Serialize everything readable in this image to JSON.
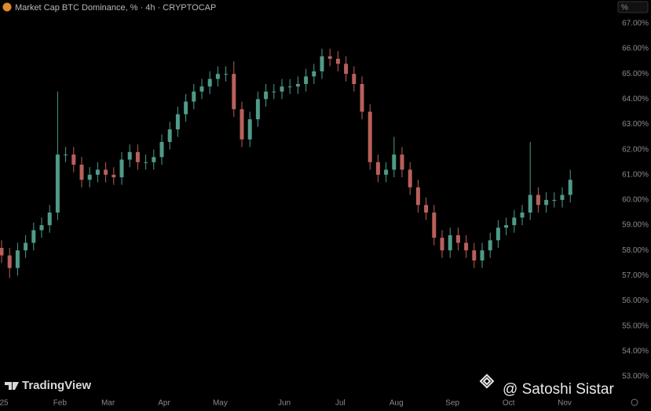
{
  "chart_data": {
    "type": "candlestick",
    "title": "Market Cap BTC Dominance, % · 4h · CRYPTOCAP",
    "axis_unit": "%",
    "watermark": "TradingView",
    "overlay_text": "@ Satoshi Sistar",
    "up_color": "#4f9a8a",
    "down_color": "#b8605a",
    "categories": [
      "25",
      null,
      null,
      null,
      null,
      null,
      null,
      "Feb",
      null,
      null,
      null,
      null,
      null,
      "Mar",
      null,
      null,
      null,
      null,
      null,
      null,
      "Apr",
      null,
      null,
      null,
      null,
      null,
      null,
      "May",
      null,
      null,
      null,
      null,
      null,
      null,
      null,
      "Jun",
      null,
      null,
      null,
      null,
      null,
      null,
      "Jul",
      null,
      null,
      null,
      null,
      null,
      null,
      "Aug",
      null,
      null,
      null,
      null,
      null,
      null,
      "Sep",
      null,
      null,
      null,
      null,
      null,
      null,
      "Oct",
      null,
      null,
      null,
      null,
      null,
      null,
      "Nov",
      null
    ],
    "open": [
      58.1,
      57.8,
      57.3,
      58.0,
      58.3,
      58.8,
      59.0,
      59.5,
      61.8,
      61.8,
      61.4,
      60.8,
      61.0,
      61.2,
      61.0,
      60.9,
      61.6,
      61.9,
      61.5,
      61.5,
      61.7,
      62.3,
      62.8,
      63.4,
      63.9,
      64.3,
      64.5,
      64.8,
      65.0,
      65.0,
      63.6,
      62.4,
      63.2,
      64.0,
      64.3,
      64.3,
      64.5,
      64.5,
      64.6,
      64.9,
      65.1,
      65.7,
      65.6,
      65.4,
      65.0,
      64.6,
      63.5,
      61.5,
      61.0,
      61.2,
      61.8,
      61.2,
      60.5,
      59.8,
      59.5,
      58.5,
      58.0,
      58.6,
      58.3,
      58.0,
      57.6,
      58.0,
      58.4,
      58.9,
      59.0,
      59.3,
      59.5,
      60.2,
      59.8,
      60.0,
      60.0,
      60.2
    ],
    "high": [
      58.4,
      58.1,
      58.3,
      58.6,
      59.1,
      59.3,
      59.8,
      64.3,
      62.1,
      62.1,
      61.7,
      61.3,
      61.5,
      61.5,
      61.3,
      61.9,
      62.2,
      62.2,
      61.8,
      62.0,
      62.6,
      63.1,
      63.7,
      64.2,
      64.6,
      64.8,
      65.1,
      65.3,
      65.3,
      65.5,
      63.9,
      63.5,
      64.3,
      64.6,
      64.6,
      64.8,
      64.8,
      64.9,
      65.2,
      65.4,
      66.0,
      66.0,
      65.9,
      65.7,
      65.3,
      64.9,
      63.8,
      61.8,
      61.5,
      62.5,
      62.1,
      61.5,
      60.8,
      60.1,
      59.8,
      58.8,
      58.9,
      58.9,
      58.6,
      58.3,
      58.3,
      58.7,
      59.2,
      59.3,
      59.6,
      59.8,
      62.3,
      60.5,
      60.3,
      60.3,
      60.5,
      61.2
    ],
    "low": [
      57.5,
      56.9,
      57.0,
      57.7,
      58.0,
      58.5,
      58.7,
      59.2,
      61.5,
      61.1,
      60.5,
      60.5,
      60.7,
      60.7,
      60.6,
      60.6,
      61.3,
      61.2,
      61.2,
      61.2,
      61.4,
      62.0,
      62.5,
      63.1,
      63.6,
      64.0,
      64.2,
      64.5,
      64.7,
      63.3,
      62.1,
      62.1,
      62.9,
      63.7,
      64.0,
      64.0,
      64.2,
      64.2,
      64.3,
      64.6,
      64.8,
      65.3,
      65.1,
      64.7,
      64.3,
      63.2,
      61.2,
      60.7,
      60.7,
      60.9,
      60.9,
      60.2,
      59.5,
      59.2,
      58.2,
      57.7,
      57.7,
      58.0,
      57.7,
      57.3,
      57.3,
      57.7,
      58.1,
      58.6,
      58.7,
      59.0,
      59.2,
      59.5,
      59.5,
      59.7,
      59.7,
      59.9
    ],
    "close": [
      57.8,
      57.3,
      58.0,
      58.3,
      58.8,
      59.0,
      59.5,
      61.8,
      61.8,
      61.4,
      60.8,
      61.0,
      61.2,
      61.0,
      60.9,
      61.6,
      61.9,
      61.5,
      61.5,
      61.7,
      62.3,
      62.8,
      63.4,
      63.9,
      64.3,
      64.5,
      64.8,
      65.0,
      65.0,
      63.6,
      62.4,
      63.2,
      64.0,
      64.3,
      64.3,
      64.5,
      64.5,
      64.6,
      64.9,
      65.1,
      65.7,
      65.6,
      65.4,
      65.0,
      64.6,
      63.5,
      61.5,
      61.0,
      61.2,
      61.8,
      61.2,
      60.5,
      59.8,
      59.5,
      58.5,
      58.0,
      58.6,
      58.3,
      58.0,
      57.6,
      58.0,
      58.4,
      58.9,
      59.0,
      59.3,
      59.5,
      60.2,
      59.8,
      60.0,
      60.0,
      60.2,
      60.8
    ],
    "ylim": [
      52.4,
      67.9
    ],
    "yticks": [
      {
        "value": 67,
        "label": "67.00%"
      },
      {
        "value": 66,
        "label": "66.00%"
      },
      {
        "value": 65,
        "label": "65.00%"
      },
      {
        "value": 64,
        "label": "64.00%"
      },
      {
        "value": 63,
        "label": "63.00%"
      },
      {
        "value": 62,
        "label": "62.00%"
      },
      {
        "value": 61,
        "label": "61.00%"
      },
      {
        "value": 60,
        "label": "60.00%"
      },
      {
        "value": 59,
        "label": "59.00%"
      },
      {
        "value": 58,
        "label": "58.00%"
      },
      {
        "value": 57,
        "label": "57.00%"
      },
      {
        "value": 56,
        "label": "56.00%"
      },
      {
        "value": 55,
        "label": "55.00%"
      },
      {
        "value": 54,
        "label": "54.00%"
      },
      {
        "value": 53,
        "label": "53.00%"
      }
    ],
    "grid": false
  }
}
